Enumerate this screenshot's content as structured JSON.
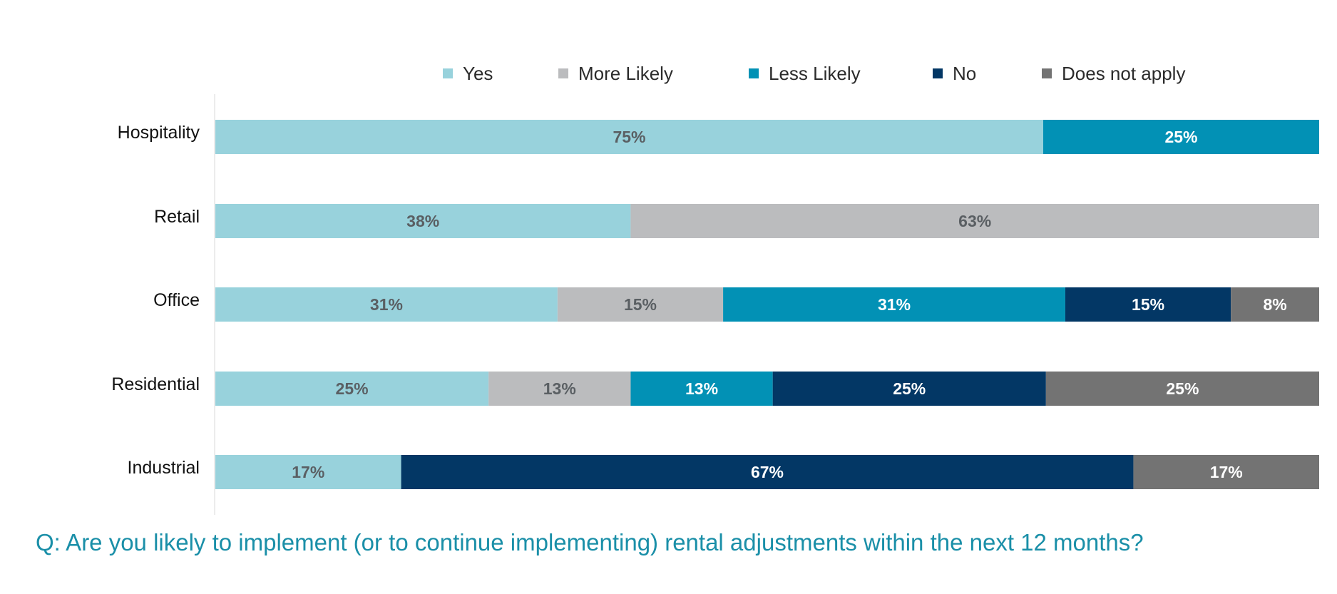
{
  "chart_data": {
    "type": "bar",
    "orientation": "horizontal",
    "stacked": true,
    "categories": [
      "Hospitality",
      "Retail",
      "Office",
      "Residential",
      "Industrial"
    ],
    "series": [
      {
        "name": "Yes",
        "color": "#98d2dc",
        "label_color": "#5a5f63",
        "values": [
          75,
          38,
          31,
          25,
          17
        ]
      },
      {
        "name": "More Likely",
        "color": "#bbbcbe",
        "label_color": "#5a5f63",
        "values": [
          0,
          63,
          15,
          13,
          0
        ]
      },
      {
        "name": "Less Likely",
        "color": "#0291b5",
        "label_color": "#ffffff",
        "values": [
          25,
          0,
          31,
          13,
          0
        ]
      },
      {
        "name": "No",
        "color": "#033765",
        "label_color": "#ffffff",
        "values": [
          0,
          0,
          15,
          25,
          67
        ]
      },
      {
        "name": "Does not apply",
        "color": "#737373",
        "label_color": "#ffffff",
        "values": [
          0,
          0,
          8,
          25,
          17
        ]
      }
    ],
    "value_suffix": "%",
    "legend_position": "top",
    "grid": false,
    "title": "Q: Are you likely to implement (or to continue implementing) rental adjustments within the next 12 months?"
  },
  "colors": {
    "question_text": "#1a8fa8",
    "axis_line": "#e6e6e6"
  }
}
